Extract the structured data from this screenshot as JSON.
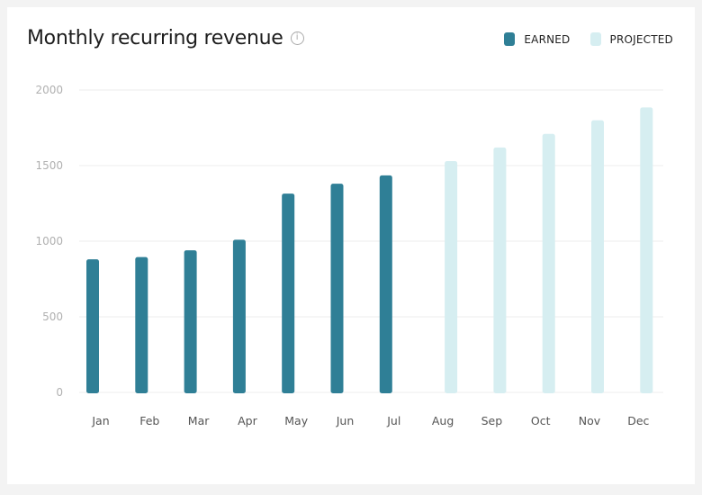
{
  "chart_data": {
    "type": "bar",
    "title": "Monthly recurring revenue",
    "xlabel": "",
    "ylabel": "",
    "ylim": [
      0,
      2000
    ],
    "yticks": [
      "0",
      "500",
      "1000",
      "1500",
      "2000"
    ],
    "grid": true,
    "legend_position": "top-right",
    "categories": [
      "Jan",
      "Feb",
      "Mar",
      "Apr",
      "May",
      "Jun",
      "Jul",
      "Aug",
      "Sep",
      "Oct",
      "Nov",
      "Dec"
    ],
    "series": [
      {
        "name": "EARNED",
        "color": "#2f7f96",
        "values": [
          880,
          895,
          940,
          1010,
          1315,
          1380,
          1435,
          null,
          null,
          null,
          null,
          null
        ]
      },
      {
        "name": "PROJECTED",
        "color": "#d6eef1",
        "values": [
          null,
          null,
          null,
          null,
          null,
          null,
          null,
          1530,
          1620,
          1710,
          1800,
          1885
        ]
      }
    ]
  },
  "info_icon": "info-circle-icon"
}
